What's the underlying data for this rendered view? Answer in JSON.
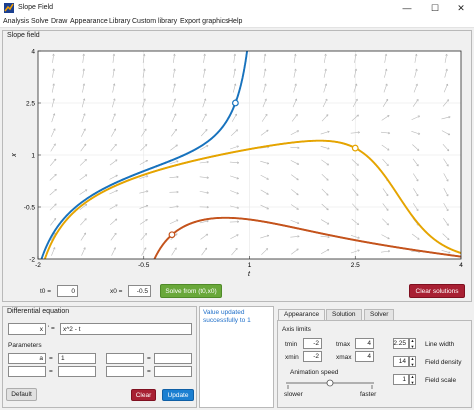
{
  "window": {
    "title": "Slope Field",
    "controls": [
      "—",
      "☐",
      "✕"
    ]
  },
  "menu": [
    "Analysis",
    "Solve",
    "Draw",
    "Appearance",
    "Library",
    "Custom library",
    "Export graphics",
    "Help"
  ],
  "slope_panel": {
    "title": "Slope field"
  },
  "chart_data": {
    "type": "line",
    "xlabel": "t",
    "ylabel": "x",
    "xlim": [
      -2,
      4
    ],
    "ylim": [
      -2,
      4
    ],
    "x_ticks": [
      "-2",
      "-0.5",
      "1",
      "2.5",
      "4"
    ],
    "y_ticks": [
      "4",
      "2.5",
      "1",
      "-0.5",
      "-2"
    ],
    "equation": "x' = x^2 - t",
    "series": [
      {
        "color": "#1772bd",
        "start": [
          2.5,
          4.0
        ],
        "initial_point": [
          0.8,
          2.5
        ]
      },
      {
        "color": "#e5a400",
        "start": [
          -2,
          -2
        ],
        "initial_point": [
          2.5,
          1.2
        ]
      },
      {
        "color": "#c4531c",
        "start": [
          -0.6,
          -2.0
        ],
        "initial_point": [
          -0.1,
          -1.3
        ]
      }
    ]
  },
  "solve_bar": {
    "t0_label": "t0 =",
    "t0_value": "0",
    "x0_label": "x0 =",
    "x0_value": "-0.5",
    "solve_button": "Solve from (t0,x0)",
    "clear_solutions_button": "Clear solutions"
  },
  "equation_panel": {
    "title": "Differential equation",
    "var": "x",
    "prime": "' =",
    "rhs": "x^2 - t",
    "params_title": "Parameters",
    "params": [
      {
        "name": "a",
        "eq": "=",
        "value": "1",
        "name2": "",
        "value2": ""
      },
      {
        "name": "",
        "eq": "=",
        "value": "",
        "name2": "",
        "value2": ""
      }
    ],
    "default_button": "Default",
    "clear_button": "Clear",
    "update_button": "Update"
  },
  "status": {
    "message": "Value updated successfully to 1"
  },
  "tabs": [
    "Appearance",
    "Solution",
    "Solver"
  ],
  "appearance": {
    "axis_limits_title": "Axis limits",
    "tmin_label": "tmin",
    "tmin": "-2",
    "tmax_label": "tmax",
    "tmax": "4",
    "xmin_label": "xmin",
    "xmin": "-2",
    "xmax_label": "xmax",
    "xmax": "4",
    "line_width_label": "Line width",
    "line_width": "2.25",
    "field_density_label": "Field density",
    "field_density": "14",
    "field_scale_label": "Field scale",
    "field_scale": "1",
    "animation_label": "Animation speed",
    "slower": "slower",
    "faster": "faster",
    "animation_speed": 0.5
  }
}
